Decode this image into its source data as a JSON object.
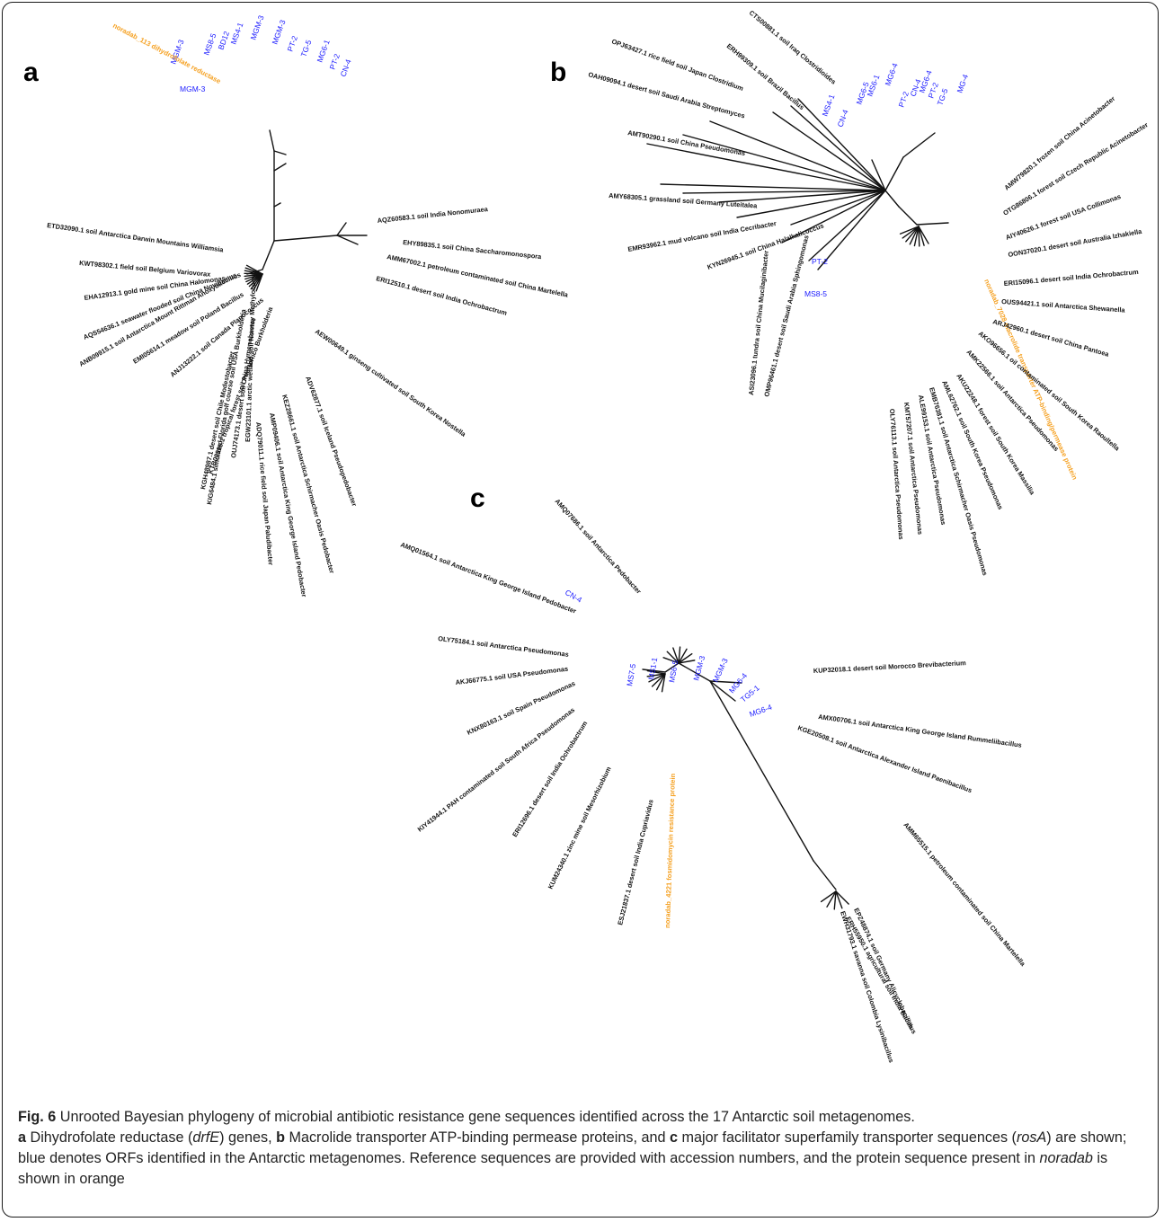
{
  "panels": {
    "a": {
      "letter": "a",
      "blue": [
        "MGM-3",
        "MS8-5",
        "BD12",
        "MS4-1",
        "MGM-3",
        "MGM-3",
        "PT-2",
        "TG-5",
        "MG6-1",
        "PT-2",
        "CN-4",
        "MGM-3"
      ],
      "orange": "noradab_113 dihydrofolate reductase",
      "black": [
        "ETD32090.1 soil Antarctica Darwin Mountains Williamsia",
        "KWT98302.1 field soil Belgium Variovorax",
        "EHA12913.1 gold mine soil China Halomonas",
        "AQS54636.1 seawater flooded soil China Novibacillus",
        "ANB09915.1 soil Antarctica Mount Rittman Anoxybacillus",
        "EMI05614.1 meadow soil Poland Bacillus",
        "ANJ13222.1 soil Canada Planococcus",
        "KGH48987.1 desert soil Chile Modestobacter",
        "KTB09919.1 tropical forest soil PuertoRico Burkholderia",
        "KIG6484.1 simulated Florida golf course soil USA Burkholderia",
        "OUJ74173.1 desert soil China Hymenobacter",
        "EGW23101.1 arctic wetland soil Norway Methylobacter",
        "ADQ79011.1 rice field soil Japan Paludibacter",
        "AMP09406.1 soil Antarctica King George Island Pedobacter",
        "KEZ28661.1 soil Antarctica Schirmacher Oasis Pedobacter",
        "ADV62877.1 soil Iceland Pseudopedobacter",
        "AEW00649.1 ginseng cultivated soil South Korea Nostella",
        "ERI12510.1 desert soil India Ochrobactrum",
        "AMM67002.1 petroleum contaminated soil China Martelella",
        "EHY89835.1 soil China Saccharomonospora",
        "AQZ60583.1 soil India Nonomuraea"
      ]
    },
    "b": {
      "letter": "b",
      "blue": [
        "MS4-1",
        "CN-4",
        "MG6-5",
        "MS6-1",
        "MG6-4",
        "PT-2",
        "CN-4",
        "MG6-4",
        "PT-2",
        "TG-5",
        "MG-4",
        "PT-2",
        "MS8-5"
      ],
      "orange": "noradab_7028 macrolide transporter ATP-binding/permease protein",
      "black": [
        "CTS00881.1 soil Iraq Clostridioides",
        "ERH99309.1 soil Brazil Bacillus",
        "OPJ63427.1 rice field soil Japan Clostridium",
        "OAH09094.1 desert soil Saudi Arabia Streptomyces",
        "AMT90290.1 soil China Pseudomonas",
        "AMY68305.1 grassland soil Germany Luteitalea",
        "EMR93962.1 mud volcano soil India Cecribacter",
        "KYN26945.1 soil China Halalkalicoccus",
        "AMW79820.1 frozen soil China Acinetobacter",
        "OTG86806.1 forest soil Czech Republic Acinetobacter",
        "AIY40626.1 forest soil USA Collimonas",
        "OON37020.1 desert soil Australia Izhakiella",
        "ERI15096.1 desert soil India Ochrobactrum",
        "OUS94421.1 soil Antarctica Shewanella",
        "ARJ42960.1 desert soil China Pantoea",
        "AKO96656.1 oil contaminated soil South Korea Raoultella",
        "AMK22566.1 soil Antarctica Pseudomonas",
        "AKU22248.1 forest soil South Korea Massilia",
        "AML62762.1 soil South Korea Pseudomonas",
        "EMB76381.1 soil Antarctica Schirmacher Oasis Pseudomonas",
        "ALE99153.1 soil Antarctica Pseudomonas",
        "KMT57207.1 soil Antarctica Pseudomonas",
        "OLY76113.1 soil Antarctica Pseudomonas",
        "ASI23096.1 tundra soil China Mucilaginibacter",
        "OMP96461.1 desert soil Saudi Arabia Sphingomonas"
      ]
    },
    "c": {
      "letter": "c",
      "blue": [
        "MS7-5",
        "MS1-1",
        "MS6-5",
        "MGM-3",
        "MGM-3",
        "MG6-4",
        "TG5-1",
        "MG6-4",
        "CN-4"
      ],
      "orange": "noradab_4221 fosmidomycin resistance protein",
      "black": [
        "AMQ01564.1 soil Antarctica King George Island Pedobacter",
        "AMQ07686.1 soil Antarctica Pedobacter",
        "OLY75184.1 soil Antarctica Pseudomonas",
        "AKJ66775.1 soil USA Pseudomonas",
        "KNX80163.1 soil Spain Pseudomonas",
        "KIY41944.1 PAH contaminated soil South Africa Pseudomonas",
        "ERI12696.1 desert soil India Ochrobactrum",
        "KUM24340.1 zinc mine soil Mesorhizobium",
        "ESJ21837.1 desert soil India Cupriavidus",
        "KUP32018.1 desert soil Morocco Brevibacterium",
        "AMX00706.1 soil Antarctica King George Island Rummeliibacillus",
        "KGE20508.1 soil Antarctica Alexander Island Paenibacillus",
        "AMM65515.1 petroleum contaminated soil China Martelella",
        "ERH55950.1 agricultural soil India Bacillus",
        "EPZ48874.1 soil Germany Alicyclobacillus",
        "EWH31793.1 savanna soil Colombia Lysinibacillus"
      ]
    }
  },
  "caption": {
    "fig_label": "Fig. 6",
    "line1": " Unrooted Bayesian phylogeny of microbial antibiotic resistance gene sequences identified across the 17 Antarctic soil metagenomes.",
    "a_label": "a",
    "a_text": " Dihydrofolate reductase (",
    "a_gene": "drfE",
    "a_text2": ") genes, ",
    "b_label": "b",
    "b_text": " Macrolide transporter ATP-binding permease proteins, and ",
    "c_label": "c",
    "c_text": " major facilitator superfamily transporter sequences (",
    "c_gene": "rosA",
    "c_text2": ") are shown; blue denotes ORFs identified in the Antarctic metagenomes. Reference sequences are provided with accession numbers, and the protein sequence present in ",
    "noradab": "noradab",
    "c_text3": " is shown in orange"
  }
}
